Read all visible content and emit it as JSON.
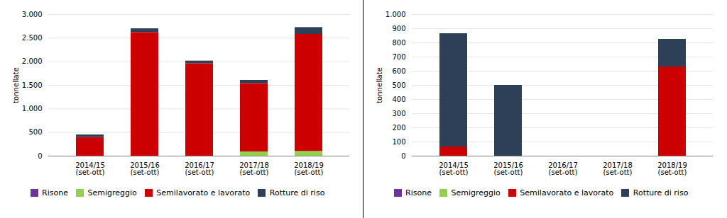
{
  "chart_data": [
    {
      "type": "bar",
      "stacked": true,
      "grid": true,
      "legend": "bottom",
      "categories": [
        "2014/15\n(set-ott)",
        "2015/16\n(set-ott)",
        "2016/17\n(set-ott)",
        "2017/18\n(set-ott)",
        "2018/19\n(set-ott)"
      ],
      "series": [
        {
          "name": "Risone",
          "color": "#7030a0",
          "values": [
            0,
            0,
            0,
            0,
            0
          ]
        },
        {
          "name": "Semigreggio",
          "color": "#92d050",
          "values": [
            0,
            0,
            0,
            90,
            100
          ]
        },
        {
          "name": "Semilavorato e lavorato",
          "color": "#cc0000",
          "values": [
            395,
            2620,
            1960,
            1450,
            2480
          ]
        },
        {
          "name": "Rotture di riso",
          "color": "#2e4057",
          "values": [
            55,
            80,
            55,
            65,
            145
          ]
        }
      ],
      "ylabel": "tonnellate",
      "ylim": [
        0,
        3000
      ],
      "yticks": [
        0,
        500,
        {
          "value": 1000,
          "label": "1.000"
        },
        {
          "value": 1500,
          "label": "1.500"
        },
        {
          "value": 2000,
          "label": "2.000"
        },
        {
          "value": 2500,
          "label": "2.500"
        },
        {
          "value": 3000,
          "label": "3.000"
        }
      ]
    },
    {
      "type": "bar",
      "stacked": true,
      "grid": true,
      "legend": "bottom",
      "categories": [
        "2014/15\n(set-ott)",
        "2015/16\n(set-ott)",
        "2016/17\n(set-ott)",
        "2017/18\n(set-ott)",
        "2018/19\n(set-ott)"
      ],
      "series": [
        {
          "name": "Risone",
          "color": "#7030a0",
          "values": [
            0,
            0,
            0,
            0,
            0
          ]
        },
        {
          "name": "Semigreggio",
          "color": "#92d050",
          "values": [
            0,
            0,
            0,
            0,
            0
          ]
        },
        {
          "name": "Semilavorato e lavorato",
          "color": "#cc0000",
          "values": [
            65,
            0,
            0,
            0,
            630
          ]
        },
        {
          "name": "Rotture di riso",
          "color": "#2e4057",
          "values": [
            800,
            500,
            0,
            0,
            195
          ]
        }
      ],
      "ylabel": "tonnellate",
      "ylim": [
        0,
        1000
      ],
      "yticks": [
        0,
        100,
        200,
        300,
        400,
        500,
        600,
        700,
        800,
        900,
        {
          "value": 1000,
          "label": "1.000"
        }
      ]
    }
  ]
}
